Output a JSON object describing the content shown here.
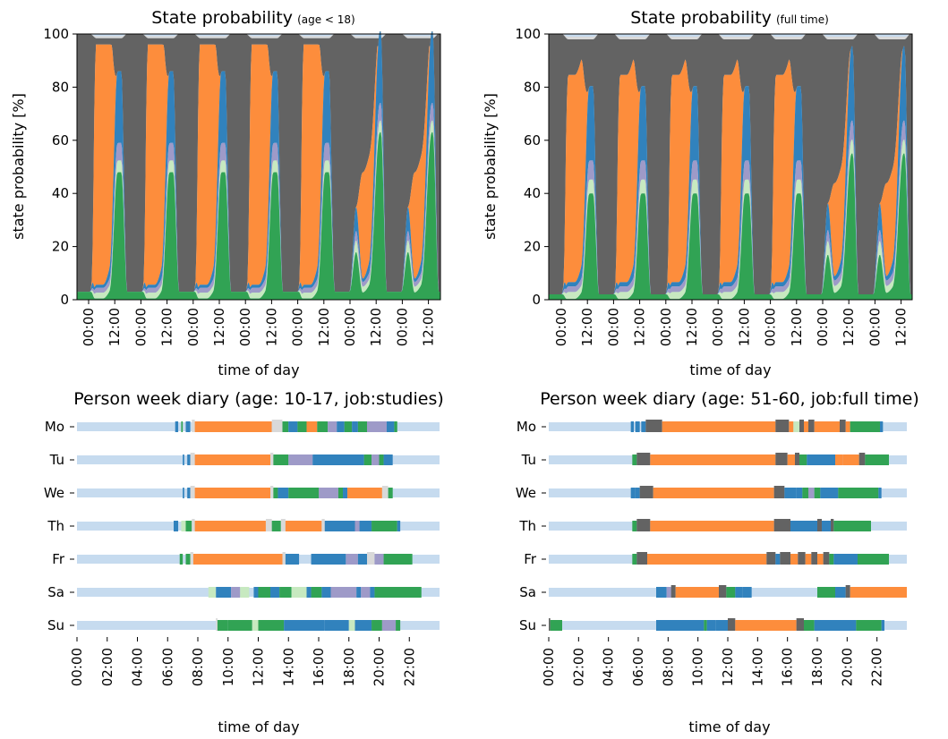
{
  "state_colors": {
    "sleep": "#c6dbef",
    "work": "#fd8d3c",
    "leisure": "#3182bd",
    "errands": "#9e9ac8",
    "other": "#c7e9c0",
    "home": "#31a354",
    "travel": "#636363",
    "misc": "#d9d9d9"
  },
  "chart_data": [
    {
      "type": "area",
      "title": "State probability",
      "subtitle": "(age < 18)",
      "xlabel": "time of day",
      "ylabel": "state probability [%]",
      "ylim": [
        0,
        100
      ],
      "yticks": [
        "0",
        "20",
        "40",
        "60",
        "80",
        "100"
      ],
      "xticks": [
        "00:00",
        "12:00",
        "00:00",
        "12:00",
        "00:00",
        "12:00",
        "00:00",
        "12:00",
        "00:00",
        "12:00",
        "00:00",
        "12:00",
        "00:00",
        "12:00"
      ],
      "xlim_hours": [
        0,
        168
      ],
      "work_weekday": 93,
      "work_weekend": 40,
      "base_evening": 48,
      "base_day": 3,
      "cum_day": [
        3,
        6,
        8,
        9
      ],
      "bump": 0.6,
      "top_day": 4
    },
    {
      "type": "area",
      "title": "State probability",
      "subtitle": "(full time)",
      "xlabel": "time of day",
      "ylabel": "state probability [%]",
      "ylim": [
        0,
        100
      ],
      "yticks": [
        "0",
        "20",
        "40",
        "60",
        "80",
        "100"
      ],
      "xticks": [
        "00:00",
        "12:00",
        "00:00",
        "12:00",
        "00:00",
        "12:00",
        "00:00",
        "12:00",
        "00:00",
        "12:00",
        "00:00",
        "12:00",
        "00:00",
        "12:00"
      ],
      "xlim_hours": [
        0,
        168
      ],
      "work_weekday": 78,
      "work_weekend": 35,
      "base_evening": 40,
      "base_day": 2,
      "cum_day": [
        4,
        7,
        10,
        18
      ],
      "bump": 0.8,
      "top_day": 5
    },
    {
      "type": "table",
      "title": "Person week diary (age: 10-17, job:studies)",
      "xlabel": "time of day",
      "days": [
        "Mo",
        "Tu",
        "We",
        "Th",
        "Fr",
        "Sa",
        "Su"
      ],
      "xticks": [
        "00:00",
        "02:00",
        "04:00",
        "06:00",
        "08:00",
        "10:00",
        "12:00",
        "14:00",
        "16:00",
        "18:00",
        "20:00",
        "22:00"
      ],
      "xlim_hours": [
        0,
        24
      ],
      "rows": [
        [
          [
            6.5,
            6.7,
            "leisure"
          ],
          [
            6.9,
            7.0,
            "home"
          ],
          [
            7.2,
            7.5,
            "leisure"
          ],
          [
            7.6,
            7.8,
            "misc"
          ],
          [
            7.8,
            12.9,
            "work"
          ],
          [
            12.9,
            13.6,
            "misc"
          ],
          [
            13.6,
            14.0,
            "home"
          ],
          [
            14.0,
            14.6,
            "leisure"
          ],
          [
            14.6,
            15.2,
            "home"
          ],
          [
            15.2,
            15.9,
            "work"
          ],
          [
            15.9,
            16.6,
            "home"
          ],
          [
            16.6,
            17.2,
            "errands"
          ],
          [
            17.2,
            17.7,
            "leisure"
          ],
          [
            17.7,
            18.2,
            "home"
          ],
          [
            18.2,
            18.6,
            "leisure"
          ],
          [
            18.6,
            19.2,
            "home"
          ],
          [
            19.2,
            20.5,
            "errands"
          ],
          [
            20.5,
            21.0,
            "leisure"
          ],
          [
            21.0,
            21.2,
            "home"
          ]
        ],
        [
          [
            7.0,
            7.1,
            "leisure"
          ],
          [
            7.3,
            7.5,
            "leisure"
          ],
          [
            7.5,
            7.8,
            "misc"
          ],
          [
            7.8,
            12.8,
            "work"
          ],
          [
            12.8,
            13.0,
            "misc"
          ],
          [
            13.0,
            14.0,
            "home"
          ],
          [
            14.0,
            15.6,
            "errands"
          ],
          [
            15.6,
            19.0,
            "leisure"
          ],
          [
            19.0,
            19.5,
            "home"
          ],
          [
            19.5,
            20.0,
            "errands"
          ],
          [
            20.0,
            20.3,
            "home"
          ],
          [
            20.3,
            20.9,
            "leisure"
          ]
        ],
        [
          [
            7.0,
            7.1,
            "leisure"
          ],
          [
            7.3,
            7.5,
            "leisure"
          ],
          [
            7.5,
            7.8,
            "misc"
          ],
          [
            7.8,
            12.8,
            "work"
          ],
          [
            12.8,
            13.0,
            "misc"
          ],
          [
            13.0,
            13.3,
            "home"
          ],
          [
            13.3,
            14.0,
            "leisure"
          ],
          [
            14.0,
            16.0,
            "home"
          ],
          [
            16.0,
            16.8,
            "errands"
          ],
          [
            16.8,
            17.3,
            "errands"
          ],
          [
            17.3,
            17.6,
            "home"
          ],
          [
            17.6,
            17.9,
            "leisure"
          ],
          [
            17.9,
            20.2,
            "work"
          ],
          [
            20.2,
            20.6,
            "misc"
          ],
          [
            20.6,
            20.9,
            "home"
          ]
        ],
        [
          [
            6.4,
            6.7,
            "leisure"
          ],
          [
            6.9,
            7.2,
            "other"
          ],
          [
            7.2,
            7.6,
            "home"
          ],
          [
            7.6,
            7.8,
            "misc"
          ],
          [
            7.8,
            12.5,
            "work"
          ],
          [
            12.5,
            12.9,
            "misc"
          ],
          [
            12.9,
            13.5,
            "home"
          ],
          [
            13.5,
            13.8,
            "misc"
          ],
          [
            13.8,
            16.2,
            "work"
          ],
          [
            16.2,
            16.4,
            "misc"
          ],
          [
            16.4,
            18.4,
            "leisure"
          ],
          [
            18.4,
            18.7,
            "errands"
          ],
          [
            18.7,
            19.5,
            "leisure"
          ],
          [
            19.5,
            21.2,
            "home"
          ],
          [
            21.2,
            21.4,
            "leisure"
          ]
        ],
        [
          [
            6.8,
            7.0,
            "home"
          ],
          [
            7.2,
            7.5,
            "home"
          ],
          [
            7.5,
            7.7,
            "misc"
          ],
          [
            7.7,
            13.6,
            "work"
          ],
          [
            13.6,
            13.8,
            "misc"
          ],
          [
            13.8,
            14.7,
            "leisure"
          ],
          [
            15.5,
            17.8,
            "leisure"
          ],
          [
            17.8,
            18.6,
            "errands"
          ],
          [
            18.6,
            19.2,
            "leisure"
          ],
          [
            19.2,
            19.7,
            "misc"
          ],
          [
            19.7,
            20.3,
            "errands"
          ],
          [
            20.3,
            22.2,
            "home"
          ]
        ],
        [
          [
            8.7,
            9.2,
            "other"
          ],
          [
            9.2,
            10.2,
            "leisure"
          ],
          [
            10.2,
            10.8,
            "errands"
          ],
          [
            10.8,
            11.4,
            "other"
          ],
          [
            11.7,
            12.0,
            "leisure"
          ],
          [
            12.0,
            12.8,
            "home"
          ],
          [
            12.8,
            13.4,
            "leisure"
          ],
          [
            13.4,
            14.2,
            "home"
          ],
          [
            14.2,
            15.2,
            "other"
          ],
          [
            15.2,
            15.5,
            "leisure"
          ],
          [
            15.5,
            16.2,
            "home"
          ],
          [
            16.2,
            16.8,
            "leisure"
          ],
          [
            16.8,
            18.5,
            "errands"
          ],
          [
            18.5,
            18.8,
            "leisure"
          ],
          [
            18.8,
            19.4,
            "errands"
          ],
          [
            19.4,
            19.7,
            "leisure"
          ],
          [
            19.7,
            22.8,
            "home"
          ]
        ],
        [
          [
            9.2,
            9.3,
            "misc"
          ],
          [
            9.3,
            10.0,
            "home"
          ],
          [
            10.0,
            11.6,
            "home"
          ],
          [
            11.6,
            12.0,
            "other"
          ],
          [
            12.0,
            13.7,
            "home"
          ],
          [
            13.7,
            16.4,
            "leisure"
          ],
          [
            16.4,
            18.0,
            "leisure"
          ],
          [
            18.0,
            18.4,
            "other"
          ],
          [
            18.4,
            19.5,
            "leisure"
          ],
          [
            19.5,
            20.2,
            "home"
          ],
          [
            20.2,
            21.1,
            "errands"
          ],
          [
            21.1,
            21.4,
            "home"
          ]
        ]
      ]
    },
    {
      "type": "table",
      "title": "Person week diary (age: 51-60, job:full time)",
      "xlabel": "time of day",
      "days": [
        "Mo",
        "Tu",
        "We",
        "Th",
        "Fr",
        "Sa",
        "Su"
      ],
      "xticks": [
        "00:00",
        "02:00",
        "04:00",
        "06:00",
        "08:00",
        "10:00",
        "12:00",
        "14:00",
        "16:00",
        "18:00",
        "20:00",
        "22:00"
      ],
      "xlim_hours": [
        0,
        24
      ],
      "rows": [
        [
          [
            5.5,
            5.7,
            "leisure"
          ],
          [
            5.8,
            6.1,
            "leisure"
          ],
          [
            6.2,
            6.5,
            "leisure"
          ],
          [
            6.5,
            7.6,
            "travel"
          ],
          [
            7.6,
            15.2,
            "work"
          ],
          [
            15.2,
            16.1,
            "travel"
          ],
          [
            16.1,
            16.4,
            "work"
          ],
          [
            16.4,
            16.8,
            "other"
          ],
          [
            16.8,
            17.1,
            "travel"
          ],
          [
            17.1,
            17.4,
            "work"
          ],
          [
            17.4,
            17.8,
            "travel"
          ],
          [
            17.8,
            19.5,
            "work"
          ],
          [
            19.5,
            19.9,
            "travel"
          ],
          [
            19.9,
            20.2,
            "work"
          ],
          [
            20.2,
            22.2,
            "home"
          ],
          [
            22.2,
            22.4,
            "leisure"
          ]
        ],
        [
          [
            5.6,
            5.9,
            "home"
          ],
          [
            5.9,
            6.8,
            "travel"
          ],
          [
            6.8,
            15.2,
            "work"
          ],
          [
            15.2,
            16.0,
            "travel"
          ],
          [
            16.0,
            16.5,
            "work"
          ],
          [
            16.5,
            16.8,
            "travel"
          ],
          [
            16.8,
            17.3,
            "home"
          ],
          [
            17.3,
            19.2,
            "leisure"
          ],
          [
            19.2,
            19.7,
            "work"
          ],
          [
            19.7,
            20.8,
            "work"
          ],
          [
            20.8,
            21.2,
            "travel"
          ],
          [
            21.2,
            22.8,
            "home"
          ]
        ],
        [
          [
            5.5,
            5.8,
            "leisure"
          ],
          [
            5.8,
            6.1,
            "leisure"
          ],
          [
            6.1,
            7.0,
            "travel"
          ],
          [
            7.0,
            15.1,
            "work"
          ],
          [
            15.1,
            15.8,
            "travel"
          ],
          [
            15.8,
            16.6,
            "leisure"
          ],
          [
            16.6,
            17.0,
            "leisure"
          ],
          [
            17.0,
            17.4,
            "home"
          ],
          [
            17.4,
            17.8,
            "errands"
          ],
          [
            17.8,
            18.2,
            "home"
          ],
          [
            18.2,
            19.4,
            "leisure"
          ],
          [
            19.4,
            22.1,
            "home"
          ],
          [
            22.1,
            22.3,
            "leisure"
          ]
        ],
        [
          [
            5.6,
            5.9,
            "home"
          ],
          [
            5.9,
            6.8,
            "travel"
          ],
          [
            6.8,
            15.1,
            "work"
          ],
          [
            15.1,
            16.2,
            "travel"
          ],
          [
            16.2,
            18.0,
            "leisure"
          ],
          [
            18.0,
            18.3,
            "travel"
          ],
          [
            18.3,
            18.9,
            "leisure"
          ],
          [
            18.9,
            19.1,
            "travel"
          ],
          [
            19.1,
            21.6,
            "home"
          ]
        ],
        [
          [
            5.6,
            5.9,
            "home"
          ],
          [
            5.9,
            6.6,
            "travel"
          ],
          [
            6.6,
            14.6,
            "work"
          ],
          [
            14.6,
            15.2,
            "travel"
          ],
          [
            15.2,
            15.5,
            "leisure"
          ],
          [
            15.5,
            16.2,
            "travel"
          ],
          [
            16.2,
            16.7,
            "work"
          ],
          [
            16.7,
            17.2,
            "travel"
          ],
          [
            17.2,
            17.6,
            "work"
          ],
          [
            17.6,
            18.0,
            "travel"
          ],
          [
            18.0,
            18.4,
            "work"
          ],
          [
            18.4,
            18.8,
            "travel"
          ],
          [
            18.8,
            19.1,
            "home"
          ],
          [
            19.1,
            20.7,
            "leisure"
          ],
          [
            20.7,
            22.8,
            "home"
          ]
        ],
        [
          [
            7.2,
            7.9,
            "leisure"
          ],
          [
            7.9,
            8.2,
            "errands"
          ],
          [
            8.2,
            8.5,
            "travel"
          ],
          [
            8.5,
            11.4,
            "work"
          ],
          [
            11.4,
            11.9,
            "travel"
          ],
          [
            11.9,
            12.5,
            "home"
          ],
          [
            12.5,
            13.0,
            "leisure"
          ],
          [
            13.0,
            13.6,
            "leisure"
          ],
          [
            18.0,
            19.2,
            "home"
          ],
          [
            19.2,
            19.9,
            "leisure"
          ],
          [
            19.9,
            20.2,
            "travel"
          ],
          [
            20.2,
            24.0,
            "work"
          ]
        ],
        [
          [
            0.0,
            0.1,
            "travel"
          ],
          [
            0.1,
            0.9,
            "home"
          ],
          [
            7.2,
            10.4,
            "leisure"
          ],
          [
            10.4,
            10.6,
            "home"
          ],
          [
            10.6,
            11.2,
            "leisure"
          ],
          [
            11.2,
            12.0,
            "leisure"
          ],
          [
            12.0,
            12.5,
            "travel"
          ],
          [
            12.5,
            16.6,
            "work"
          ],
          [
            16.6,
            17.1,
            "travel"
          ],
          [
            17.1,
            17.8,
            "home"
          ],
          [
            17.8,
            20.6,
            "leisure"
          ],
          [
            20.6,
            22.3,
            "home"
          ],
          [
            22.3,
            22.5,
            "leisure"
          ]
        ]
      ]
    }
  ]
}
